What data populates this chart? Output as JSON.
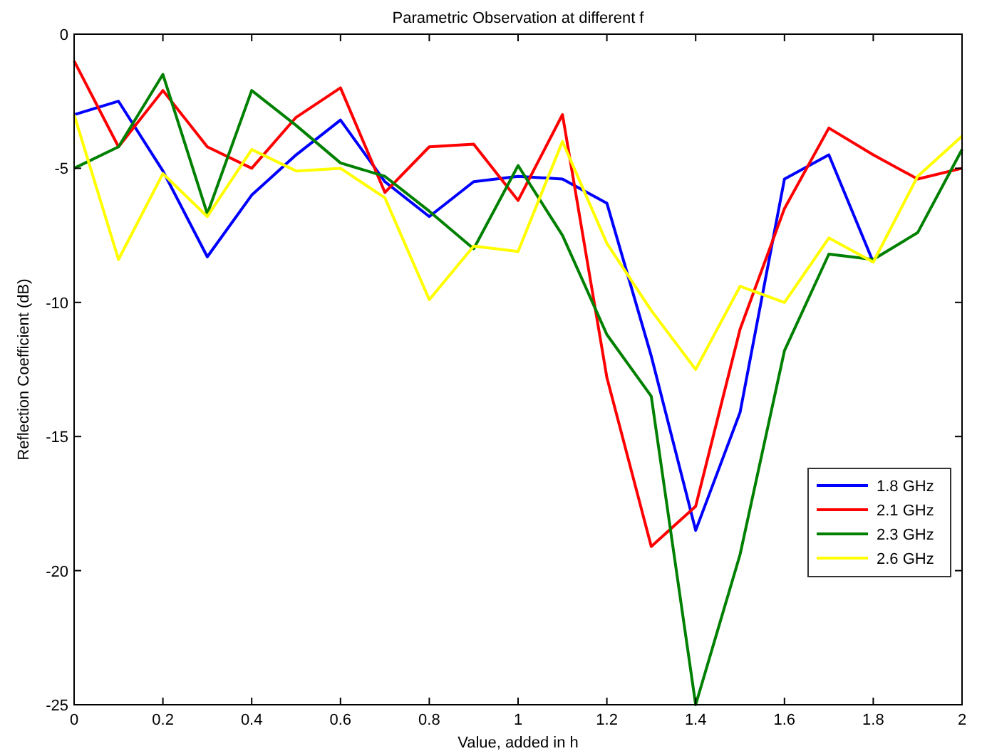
{
  "chart_data": {
    "type": "line",
    "title": "Parametric Observation at different f",
    "xlabel": "Value, added in h",
    "ylabel": "Reflection Coefficient (dB)",
    "x": [
      0,
      0.1,
      0.2,
      0.3,
      0.4,
      0.5,
      0.6,
      0.7,
      0.8,
      0.9,
      1.0,
      1.1,
      1.2,
      1.3,
      1.4,
      1.5,
      1.6,
      1.7,
      1.8,
      1.9,
      2.0
    ],
    "series": [
      {
        "name": "1.8 GHz",
        "color": "#0000ff",
        "values": [
          -3.0,
          -2.5,
          -5.1,
          -8.3,
          -6.0,
          -4.5,
          -3.2,
          -5.5,
          -6.8,
          -5.5,
          -5.3,
          -5.4,
          -6.3,
          -12.0,
          -18.5,
          -14.1,
          -5.4,
          -4.5,
          -8.5,
          null,
          null
        ]
      },
      {
        "name": "2.1 GHz",
        "color": "#ff0000",
        "values": [
          -1.0,
          -4.2,
          -2.1,
          -4.2,
          -5.0,
          -3.1,
          -2.0,
          -5.9,
          -4.2,
          -4.1,
          -6.2,
          -3.0,
          -12.8,
          -19.1,
          -17.6,
          -11.0,
          -6.5,
          -3.5,
          -4.5,
          -5.4,
          -5.0
        ]
      },
      {
        "name": "2.3 GHz",
        "color": "#008000",
        "values": [
          -5.0,
          -4.2,
          -1.5,
          -6.7,
          -2.1,
          -3.4,
          -4.8,
          -5.3,
          -6.6,
          -8.0,
          -4.9,
          -7.5,
          -11.2,
          -13.5,
          -25.0,
          -19.4,
          -11.8,
          -8.2,
          -8.4,
          -7.4,
          -4.3
        ]
      },
      {
        "name": "2.6 GHz",
        "color": "#ffff00",
        "values": [
          -3.0,
          -8.4,
          -5.2,
          -6.8,
          -4.3,
          -5.1,
          -5.0,
          -6.1,
          -9.9,
          -7.9,
          -8.1,
          -4.0,
          -7.8,
          -10.3,
          -12.5,
          -9.4,
          -10.0,
          -7.6,
          -8.5,
          -5.3,
          -3.8
        ]
      }
    ],
    "xlim": [
      0,
      2
    ],
    "xticks": [
      0,
      0.2,
      0.4,
      0.6,
      0.8,
      1,
      1.2,
      1.4,
      1.6,
      1.8,
      2
    ],
    "ylim": [
      -25,
      0
    ],
    "yticks": [
      -25,
      -20,
      -15,
      -10,
      -5,
      0
    ],
    "legend": "bottom right",
    "grid": false,
    "marker": "none",
    "line_style": "solid"
  }
}
